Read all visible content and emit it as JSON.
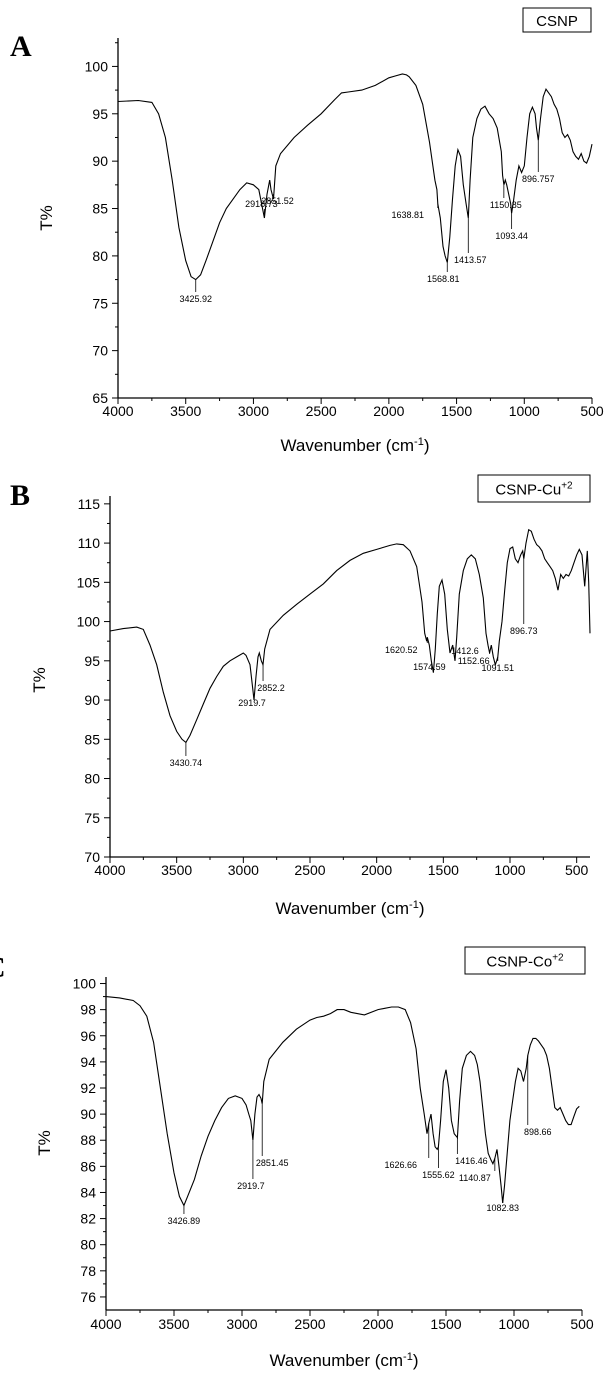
{
  "figure": {
    "panel_letters": [
      "A",
      "B",
      "C"
    ]
  },
  "chart_data": [
    {
      "type": "line",
      "panel": "A",
      "legend": "CSNP",
      "xlabel": "Wavenumber (cm",
      "xlabel_sup": "-1",
      "xlabel_end": ")",
      "ylabel": "T%",
      "xlim": [
        4000,
        500
      ],
      "ylim": [
        65,
        103
      ],
      "xticks": [
        4000,
        3500,
        3000,
        2500,
        2000,
        1500,
        1000,
        500
      ],
      "yticks": [
        65,
        70,
        75,
        80,
        85,
        90,
        95,
        100
      ],
      "series": [
        {
          "x": [
            4000,
            3850,
            3750,
            3700,
            3650,
            3600,
            3550,
            3500,
            3460,
            3425.92,
            3390,
            3350,
            3300,
            3250,
            3200,
            3150,
            3100,
            3050,
            3000,
            2960,
            2940,
            2918.73,
            2900,
            2880,
            2870,
            2851.52,
            2835,
            2800,
            2700,
            2600,
            2500,
            2400,
            2350,
            2300,
            2200,
            2100,
            2000,
            1950,
            1900,
            1870,
            1850,
            1800,
            1750,
            1700,
            1660,
            1645,
            1638.81,
            1620,
            1600,
            1585,
            1568.81,
            1550,
            1530,
            1510,
            1490,
            1470,
            1450,
            1430,
            1413.57,
            1400,
            1380,
            1350,
            1320,
            1290,
            1260,
            1230,
            1200,
            1170,
            1160,
            1150.85,
            1140,
            1130,
            1115,
            1100,
            1093.44,
            1080,
            1060,
            1040,
            1020,
            1000,
            980,
            960,
            940,
            920,
            910,
            896.757,
            880,
            860,
            840,
            820,
            800,
            780,
            760,
            740,
            720,
            700,
            680,
            660,
            640,
            620,
            600,
            580,
            560,
            540,
            520,
            500
          ],
          "y": [
            96.3,
            96.4,
            96.2,
            95.0,
            92.5,
            88.0,
            83.0,
            79.5,
            77.8,
            77.5,
            78.0,
            79.5,
            81.5,
            83.5,
            85.0,
            86.0,
            87.0,
            87.7,
            87.5,
            87.0,
            85.5,
            84.0,
            86.5,
            88.0,
            87.0,
            86.0,
            89.5,
            90.8,
            92.5,
            93.8,
            95.0,
            96.5,
            97.2,
            97.3,
            97.5,
            98.0,
            98.8,
            99.0,
            99.2,
            99.1,
            98.9,
            98.0,
            96.0,
            92.0,
            88.0,
            87.0,
            85.5,
            84.0,
            81.0,
            80.0,
            79.3,
            82.0,
            86.0,
            89.5,
            91.2,
            90.5,
            87.5,
            85.5,
            84.0,
            88.0,
            92.5,
            94.5,
            95.5,
            95.8,
            95.0,
            94.5,
            93.5,
            91.0,
            88.5,
            87.5,
            88.0,
            87.5,
            86.5,
            85.5,
            84.5,
            85.8,
            88.0,
            89.5,
            88.8,
            89.5,
            92.5,
            95.0,
            95.7,
            95.0,
            93.5,
            92.2,
            94.5,
            96.8,
            97.6,
            97.2,
            96.8,
            96.0,
            95.5,
            94.5,
            93.0,
            92.5,
            92.8,
            92.2,
            91.0,
            90.5,
            90.2,
            90.8,
            90.0,
            89.8,
            90.5,
            91.8
          ]
        }
      ],
      "peaks": [
        {
          "x": 3425.92,
          "label": "3425.92"
        },
        {
          "x": 2918.73,
          "label": "2918.73"
        },
        {
          "x": 2851.52,
          "label": "2851.52"
        },
        {
          "x": 1638.81,
          "label": "1638.81"
        },
        {
          "x": 1568.81,
          "label": "1568.81"
        },
        {
          "x": 1413.57,
          "label": "1413.57"
        },
        {
          "x": 1150.85,
          "label": "1150.85"
        },
        {
          "x": 1093.44,
          "label": "1093.44"
        },
        {
          "x": 896.757,
          "label": "896.757"
        }
      ]
    },
    {
      "type": "line",
      "panel": "B",
      "legend": "CSNP-Cu",
      "legend_sup": "+2",
      "xlabel": "Wavenumber (cm",
      "xlabel_sup": "-1",
      "xlabel_end": ")",
      "ylabel": "T%",
      "xlim": [
        4000,
        400
      ],
      "ylim": [
        70,
        116
      ],
      "xticks": [
        4000,
        3500,
        3000,
        2500,
        2000,
        1500,
        1000,
        500
      ],
      "yticks": [
        70,
        75,
        80,
        85,
        90,
        95,
        100,
        105,
        110,
        115
      ],
      "series": [
        {
          "x": [
            4000,
            3900,
            3800,
            3750,
            3700,
            3650,
            3600,
            3550,
            3500,
            3460,
            3430.74,
            3400,
            3350,
            3300,
            3250,
            3200,
            3150,
            3100,
            3050,
            3000,
            2980,
            2950,
            2930,
            2919.7,
            2905,
            2890,
            2880,
            2865,
            2852.2,
            2840,
            2800,
            2700,
            2600,
            2500,
            2400,
            2300,
            2200,
            2100,
            2000,
            1900,
            1850,
            1800,
            1750,
            1700,
            1660,
            1640,
            1625,
            1620.52,
            1605,
            1590,
            1574.59,
            1560,
            1545,
            1530,
            1510,
            1490,
            1470,
            1450,
            1430,
            1412.6,
            1400,
            1380,
            1350,
            1320,
            1290,
            1260,
            1230,
            1200,
            1180,
            1165,
            1152.66,
            1140,
            1125,
            1110,
            1100,
            1091.51,
            1080,
            1060,
            1040,
            1020,
            1000,
            980,
            960,
            940,
            920,
            905,
            896.73,
            880,
            860,
            840,
            820,
            800,
            780,
            760,
            740,
            720,
            700,
            680,
            660,
            640,
            620,
            600,
            580,
            560,
            540,
            520,
            500,
            480,
            460,
            440,
            420,
            410,
            400
          ],
          "y": [
            98.8,
            99.1,
            99.3,
            99.0,
            97.0,
            94.5,
            91.0,
            88.0,
            86.0,
            85.0,
            84.6,
            85.5,
            87.5,
            89.5,
            91.5,
            93.0,
            94.3,
            95.0,
            95.5,
            96.0,
            95.7,
            94.5,
            91.5,
            90.0,
            93.0,
            95.5,
            96.0,
            95.0,
            94.5,
            96.5,
            99.0,
            100.8,
            102.2,
            103.5,
            104.8,
            106.5,
            107.8,
            108.7,
            109.2,
            109.7,
            109.9,
            109.8,
            109.0,
            107.0,
            102.5,
            98.5,
            97.5,
            98.0,
            97.0,
            95.0,
            93.5,
            96.5,
            101.0,
            104.5,
            105.3,
            103.5,
            99.0,
            96.0,
            97.0,
            95.0,
            98.0,
            103.5,
            106.5,
            108.0,
            108.5,
            108.0,
            106.0,
            103.0,
            98.5,
            97.0,
            96.0,
            97.0,
            95.5,
            94.5,
            95.0,
            95.5,
            97.5,
            100.0,
            104.0,
            107.5,
            109.3,
            109.5,
            108.0,
            107.5,
            108.5,
            109.0,
            108.0,
            110.0,
            111.7,
            111.5,
            110.5,
            109.8,
            109.5,
            109.0,
            108.0,
            107.5,
            107.0,
            106.5,
            105.5,
            104.0,
            106.0,
            105.5,
            106.0,
            105.8,
            106.5,
            107.5,
            108.5,
            109.2,
            108.5,
            104.5,
            109.0,
            105.0,
            98.5
          ]
        }
      ],
      "peaks": [
        {
          "x": 3430.74,
          "label": "3430.74"
        },
        {
          "x": 2919.7,
          "label": "2919.7"
        },
        {
          "x": 2852.2,
          "label": "2852.2"
        },
        {
          "x": 1620.52,
          "label": "1620.52"
        },
        {
          "x": 1574.59,
          "label": "1574.59"
        },
        {
          "x": 1412.6,
          "label": "1412.6"
        },
        {
          "x": 1152.66,
          "label": "1152.66"
        },
        {
          "x": 1091.51,
          "label": "1091.51"
        },
        {
          "x": 896.73,
          "label": "896.73"
        }
      ]
    },
    {
      "type": "line",
      "panel": "C",
      "legend": "CSNP-Co",
      "legend_sup": "+2",
      "xlabel": "Wavenumber (cm",
      "xlabel_sup": "-1",
      "xlabel_end": ")",
      "ylabel": "T%",
      "xlim": [
        4000,
        500
      ],
      "ylim": [
        75,
        100.5
      ],
      "xticks": [
        4000,
        3500,
        3000,
        2500,
        2000,
        1500,
        1000,
        500
      ],
      "yticks": [
        76,
        78,
        80,
        82,
        84,
        86,
        88,
        90,
        92,
        94,
        96,
        98,
        100
      ],
      "series": [
        {
          "x": [
            4000,
            3900,
            3800,
            3750,
            3700,
            3650,
            3600,
            3550,
            3500,
            3460,
            3426.89,
            3400,
            3350,
            3300,
            3250,
            3200,
            3150,
            3100,
            3050,
            3000,
            2970,
            2950,
            2935,
            2919.7,
            2905,
            2890,
            2875,
            2860,
            2851.45,
            2840,
            2800,
            2700,
            2600,
            2500,
            2450,
            2400,
            2350,
            2300,
            2250,
            2200,
            2100,
            2000,
            1950,
            1900,
            1850,
            1800,
            1760,
            1720,
            1690,
            1660,
            1640,
            1626.66,
            1610,
            1595,
            1580,
            1565,
            1555.62,
            1540,
            1520,
            1500,
            1480,
            1460,
            1440,
            1416.46,
            1400,
            1380,
            1350,
            1320,
            1290,
            1270,
            1250,
            1230,
            1210,
            1190,
            1170,
            1155,
            1140.87,
            1125,
            1110,
            1095,
            1082.83,
            1070,
            1050,
            1030,
            1010,
            990,
            970,
            950,
            930,
            910,
            898.66,
            880,
            860,
            840,
            820,
            800,
            780,
            760,
            740,
            720,
            700,
            680,
            660,
            640,
            620,
            600,
            580,
            560,
            540,
            520
          ],
          "y": [
            99.0,
            98.9,
            98.7,
            98.3,
            97.5,
            95.5,
            92.0,
            88.5,
            85.5,
            83.7,
            83.0,
            83.7,
            85.0,
            86.8,
            88.3,
            89.5,
            90.5,
            91.2,
            91.4,
            91.2,
            90.7,
            90.0,
            89.5,
            88.0,
            90.0,
            91.3,
            91.5,
            91.2,
            90.8,
            92.5,
            94.2,
            95.5,
            96.5,
            97.2,
            97.4,
            97.5,
            97.7,
            98.0,
            98.0,
            97.8,
            97.6,
            98.0,
            98.1,
            98.2,
            98.2,
            98.0,
            97.0,
            95.0,
            92.0,
            90.0,
            88.5,
            89.3,
            90.0,
            88.5,
            87.5,
            87.3,
            87.5,
            89.5,
            92.5,
            93.4,
            92.0,
            89.5,
            88.5,
            88.2,
            91.0,
            93.5,
            94.5,
            94.8,
            94.5,
            93.8,
            92.5,
            90.5,
            88.5,
            87.0,
            86.5,
            86.2,
            86.6,
            87.3,
            86.0,
            84.5,
            83.2,
            84.5,
            87.0,
            89.5,
            91.0,
            92.5,
            93.5,
            93.3,
            92.5,
            93.5,
            94.5,
            95.3,
            95.8,
            95.8,
            95.6,
            95.3,
            95.0,
            94.5,
            93.5,
            92.0,
            90.5,
            90.3,
            90.5,
            90.0,
            89.5,
            89.2,
            89.2,
            89.8,
            90.4,
            90.6
          ]
        }
      ],
      "peaks": [
        {
          "x": 3426.89,
          "label": "3426.89"
        },
        {
          "x": 2919.7,
          "label": "2919.7"
        },
        {
          "x": 2851.45,
          "label": "2851.45"
        },
        {
          "x": 1626.66,
          "label": "1626.66"
        },
        {
          "x": 1555.62,
          "label": "1555.62"
        },
        {
          "x": 1416.46,
          "label": "1416.46"
        },
        {
          "x": 1140.87,
          "label": "1140.87"
        },
        {
          "x": 1082.83,
          "label": "1082.83"
        },
        {
          "x": 898.66,
          "label": "898.66"
        }
      ]
    }
  ]
}
